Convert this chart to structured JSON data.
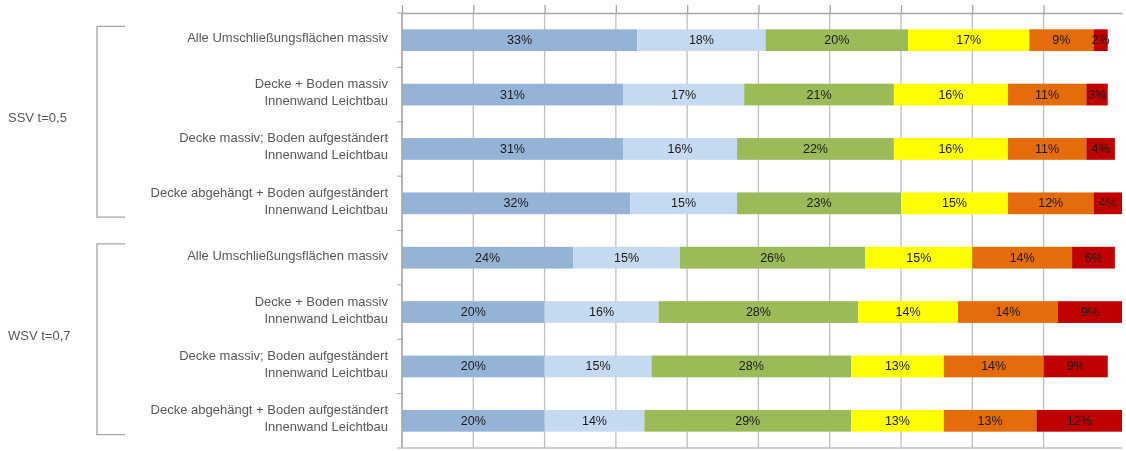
{
  "chart_data": {
    "type": "bar",
    "orientation": "horizontal",
    "stacked": true,
    "categories": [
      "Alle Umschließungsflächen massiv",
      "Decke + Boden massiv\nInnenwand Leichtbau",
      "Decke massiv; Boden aufgeständert\nInnenwand Leichtbau",
      "Decke abgehängt + Boden aufgeständert\nInnenwand Leichtbau",
      "Alle Umschließungsflächen massiv",
      "Decke + Boden massiv\nInnenwand Leichtbau",
      "Decke massiv; Boden aufgeständert\nInnenwand Leichtbau",
      "Decke abgehängt + Boden aufgeständert\nInnenwand Leichtbau"
    ],
    "series": [
      {
        "color": "#95b3d7",
        "values": [
          33,
          31,
          31,
          32,
          24,
          20,
          20,
          20
        ],
        "value_labels": [
          "33%",
          "31%",
          "31%",
          "32%",
          "24%",
          "20%",
          "20%",
          "20%"
        ]
      },
      {
        "color": "#c5d9f1",
        "values": [
          18,
          17,
          16,
          15,
          15,
          16,
          15,
          14
        ],
        "value_labels": [
          "18%",
          "17%",
          "16%",
          "15%",
          "15%",
          "16%",
          "15%",
          "14%"
        ]
      },
      {
        "color": "#9bbb59",
        "values": [
          20,
          21,
          22,
          23,
          26,
          28,
          28,
          29
        ],
        "value_labels": [
          "20%",
          "21%",
          "22%",
          "23%",
          "26%",
          "28%",
          "28%",
          "29%"
        ]
      },
      {
        "color": "#ffff00",
        "values": [
          17,
          16,
          16,
          15,
          15,
          14,
          13,
          13
        ],
        "value_labels": [
          "17%",
          "16%",
          "16%",
          "15%",
          "15%",
          "14%",
          "13%",
          "13%"
        ]
      },
      {
        "color": "#e46c0a",
        "values": [
          9,
          11,
          11,
          12,
          14,
          14,
          14,
          13
        ],
        "value_labels": [
          "9%",
          "11%",
          "11%",
          "12%",
          "14%",
          "14%",
          "14%",
          "13%"
        ]
      },
      {
        "color": "#c00000",
        "values": [
          2,
          3,
          4,
          4,
          6,
          9,
          9,
          12
        ],
        "value_labels": [
          "2%",
          "3%",
          "4%",
          "4%",
          "6%",
          "9%",
          "9%",
          "12%"
        ]
      }
    ],
    "xlim": [
      0,
      101
    ],
    "xticks": [
      {
        "value": 0,
        "label": null
      },
      {
        "value": 10,
        "label": null
      },
      {
        "value": 20,
        "label": null
      },
      {
        "value": 30,
        "label": null
      },
      {
        "value": 40,
        "label": null
      },
      {
        "value": 50,
        "label": null
      },
      {
        "value": 60,
        "label": null
      },
      {
        "value": 70,
        "label": null
      },
      {
        "value": 80,
        "label": null
      },
      {
        "value": 90,
        "label": null
      }
    ],
    "grid": "x",
    "tick_labels": "y",
    "annotations": [
      "SSV t=0,5",
      "WSV t=0,7"
    ]
  }
}
